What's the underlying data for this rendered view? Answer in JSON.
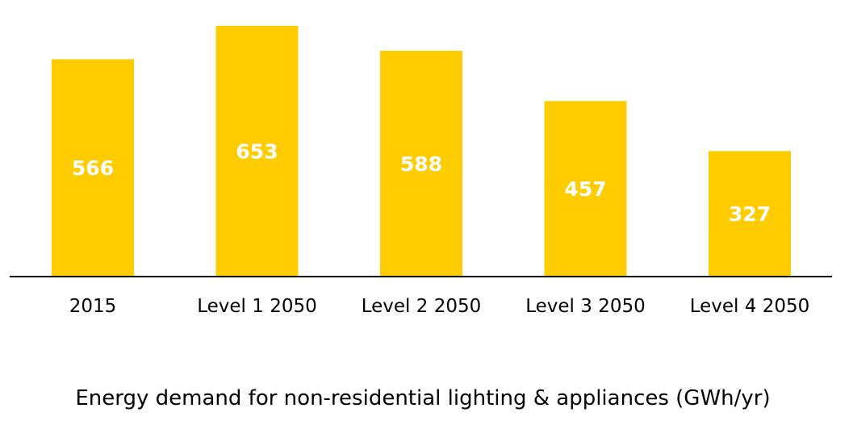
{
  "chart_data": {
    "type": "bar",
    "categories": [
      "2015",
      "Level 1 2050",
      "Level 2 2050",
      "Level 3 2050",
      "Level 4 2050"
    ],
    "values": [
      566,
      653,
      588,
      457,
      327
    ],
    "data_labels": [
      "566",
      "653",
      "588",
      "457",
      "327"
    ],
    "title": "",
    "xlabel": "Energy demand for non-residential lighting & appliances (GWh/yr)",
    "ylabel": "",
    "ylim": [
      0,
      700
    ],
    "grid": false,
    "legend": "none",
    "bar_color": "#FFCC00",
    "label_color": "#FFFFFF",
    "axis_color": "#000000"
  }
}
